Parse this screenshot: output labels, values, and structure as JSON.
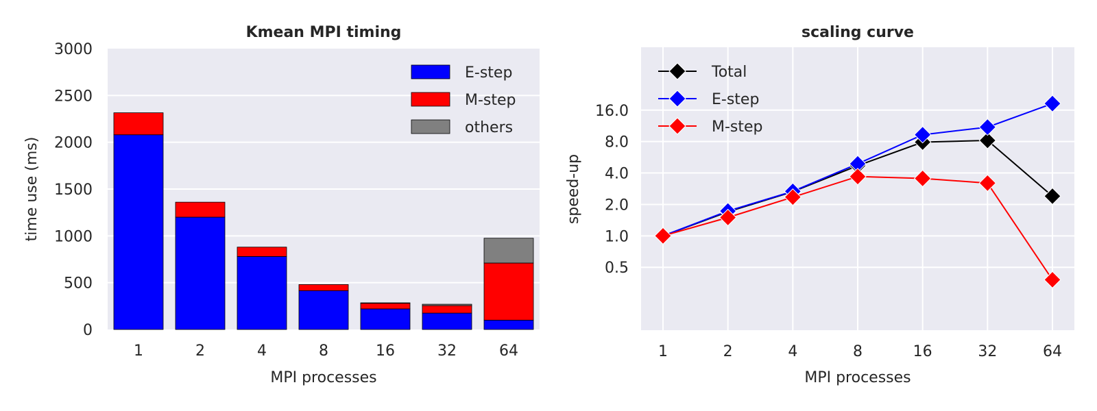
{
  "chart_data": [
    {
      "type": "bar",
      "stacked": true,
      "title": "Kmean MPI timing",
      "xlabel": "MPI processes",
      "ylabel": "time use (ms)",
      "categories": [
        "1",
        "2",
        "4",
        "8",
        "16",
        "32",
        "64"
      ],
      "ylim": [
        0,
        3000
      ],
      "yticks": [
        "0",
        "500",
        "1000",
        "1500",
        "2000",
        "2500",
        "3000"
      ],
      "ytick_values": [
        0,
        500,
        1000,
        1500,
        2000,
        2500,
        3000
      ],
      "legend_position": "top-right",
      "grid": true,
      "series": [
        {
          "name": "E-step",
          "color": "#0000ff",
          "values": [
            2080,
            1200,
            780,
            415,
            220,
            175,
            100
          ]
        },
        {
          "name": "M-step",
          "color": "#ff0000",
          "values": [
            235,
            160,
            100,
            65,
            60,
            80,
            610
          ]
        },
        {
          "name": "others",
          "color": "#808080",
          "values": [
            0,
            0,
            0,
            0,
            5,
            15,
            265
          ]
        }
      ]
    },
    {
      "type": "line",
      "title": "scaling curve",
      "xlabel": "MPI processes",
      "ylabel": "speed-up",
      "x": [
        "1",
        "2",
        "4",
        "8",
        "16",
        "32",
        "64"
      ],
      "yscale": "log2",
      "ylim": [
        0.125,
        64
      ],
      "yticks": [
        "0.5",
        "1.0",
        "2.0",
        "4.0",
        "8.0",
        "16.0"
      ],
      "ytick_values": [
        0.5,
        1,
        2,
        4,
        8,
        16
      ],
      "legend_position": "top-left",
      "grid": true,
      "series": [
        {
          "name": "Total",
          "color": "#000000",
          "values": [
            1.0,
            1.7,
            2.65,
            4.7,
            7.9,
            8.2,
            2.4
          ]
        },
        {
          "name": "E-step",
          "color": "#0000ff",
          "values": [
            1.0,
            1.73,
            2.67,
            4.9,
            9.3,
            11.0,
            18.5
          ]
        },
        {
          "name": "M-step",
          "color": "#ff0000",
          "values": [
            1.0,
            1.5,
            2.35,
            3.7,
            3.55,
            3.2,
            0.38
          ]
        }
      ]
    }
  ]
}
